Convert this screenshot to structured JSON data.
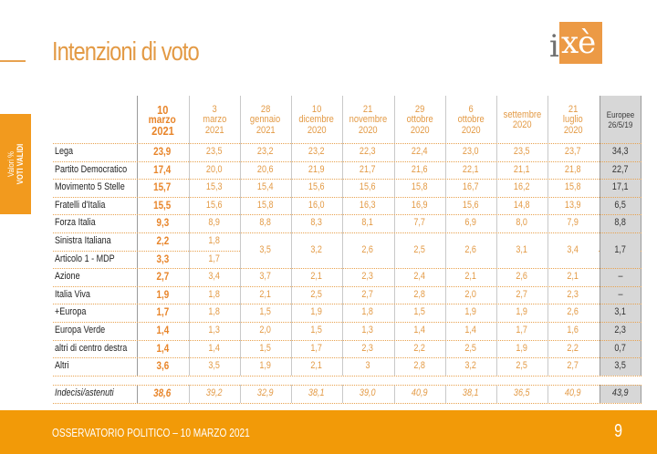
{
  "page": {
    "title": "Intenzioni di voto",
    "brand_color": "#f29a08",
    "logo": {
      "text_i": "i",
      "text_xe": "xè"
    },
    "side_tab": {
      "line1": "Valori %",
      "line2": "VOTI VALIDI"
    }
  },
  "table": {
    "columns": [
      {
        "l1": "10",
        "l2": "marzo",
        "l3": "2021"
      },
      {
        "l1": "3",
        "l2": "marzo",
        "l3": "2021"
      },
      {
        "l1": "28",
        "l2": "gennaio",
        "l3": "2021"
      },
      {
        "l1": "10",
        "l2": "dicembre",
        "l3": "2020"
      },
      {
        "l1": "21",
        "l2": "novembre",
        "l3": "2020"
      },
      {
        "l1": "29",
        "l2": "ottobre",
        "l3": "2020"
      },
      {
        "l1": "6",
        "l2": "ottobre",
        "l3": "2020"
      },
      {
        "l1": "settembre",
        "l2": "2020"
      },
      {
        "l1": "21",
        "l2": "luglio",
        "l3": "2020"
      },
      {
        "l1": "Europee",
        "l2": "26/5/19"
      }
    ],
    "rows": [
      {
        "label": "Lega",
        "values": [
          "23,9",
          "23,5",
          "23,2",
          "23,2",
          "22,3",
          "22,4",
          "23,0",
          "23,5",
          "23,7",
          "34,3"
        ]
      },
      {
        "label": "Partito Democratico",
        "values": [
          "17,4",
          "20,0",
          "20,6",
          "21,9",
          "21,7",
          "21,6",
          "22,1",
          "21,1",
          "21,8",
          "22,7"
        ]
      },
      {
        "label": "Movimento 5 Stelle",
        "values": [
          "15,7",
          "15,3",
          "15,4",
          "15,6",
          "15,6",
          "15,8",
          "16,7",
          "16,2",
          "15,8",
          "17,1"
        ]
      },
      {
        "label": "Fratelli d'Italia",
        "values": [
          "15,5",
          "15,6",
          "15,8",
          "16,0",
          "16,3",
          "16,9",
          "15,6",
          "14,8",
          "13,9",
          "6,5"
        ]
      },
      {
        "label": "Forza Italia",
        "values": [
          "9,3",
          "8,9",
          "8,8",
          "8,3",
          "8,1",
          "7,7",
          "6,9",
          "8,0",
          "7,9",
          "8,8"
        ]
      },
      {
        "label": "Sinistra Italiana",
        "values": [
          "2,2",
          "1,8"
        ]
      },
      {
        "label": "Articolo 1 - MDP",
        "values": [
          "3,3",
          "1,7"
        ]
      },
      {
        "label": "Azione",
        "values": [
          "2,7",
          "3,4",
          "3,7",
          "2,1",
          "2,3",
          "2,4",
          "2,1",
          "2,6",
          "2,1",
          "–"
        ]
      },
      {
        "label": "Italia Viva",
        "values": [
          "1,9",
          "1,8",
          "2,1",
          "2,5",
          "2,7",
          "2,8",
          "2,0",
          "2,7",
          "2,3",
          "–"
        ]
      },
      {
        "label": "+Europa",
        "values": [
          "1,7",
          "1,8",
          "1,5",
          "1,9",
          "1,8",
          "1,5",
          "1,9",
          "1,9",
          "2,6",
          "3,1"
        ]
      },
      {
        "label": "Europa Verde",
        "values": [
          "1,4",
          "1,3",
          "2,0",
          "1,5",
          "1,3",
          "1,4",
          "1,4",
          "1,7",
          "1,6",
          "2,3"
        ]
      },
      {
        "label": "altri di centro destra",
        "values": [
          "1,4",
          "1,4",
          "1,5",
          "1,7",
          "2,3",
          "2,2",
          "2,5",
          "1,9",
          "2,2",
          "0,7"
        ]
      },
      {
        "label": "Altri",
        "values": [
          "3,6",
          "3,5",
          "1,9",
          "2,1",
          "3",
          "2,8",
          "3,2",
          "2,5",
          "2,7",
          "3,5"
        ]
      }
    ],
    "merged_si_art1": [
      "3,5",
      "3,2",
      "2,6",
      "2,5",
      "2,6",
      "3,1",
      "3,4",
      "1,7"
    ],
    "undecided": {
      "label": "Indecisi/astenuti",
      "values": [
        "38,6",
        "39,2",
        "32,9",
        "38,1",
        "39,0",
        "40,9",
        "38,1",
        "36,5",
        "40,9",
        "43,9"
      ]
    }
  },
  "footer": {
    "text": "OSSERVATORIO POLITICO – 10 MARZO 2021",
    "page_number": "9"
  }
}
